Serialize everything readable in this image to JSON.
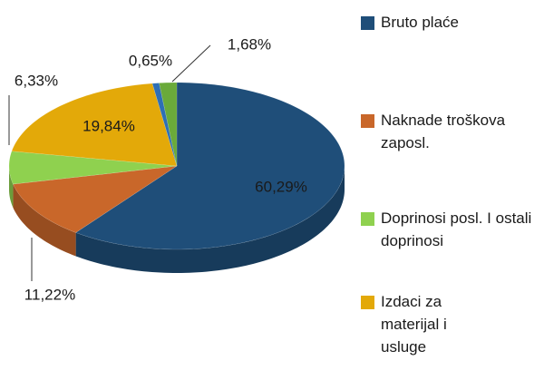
{
  "chart_data": {
    "type": "pie",
    "categories": [
      "Bruto plaće",
      "Naknade troškova zaposl.",
      "Doprinosi posl. I ostali doprinosi",
      "Izdaci za materijal i usluge",
      null,
      null
    ],
    "values": [
      60.29,
      11.22,
      6.33,
      19.84,
      0.65,
      1.68
    ],
    "value_labels": [
      "60,29%",
      "11,22%",
      "6,33%",
      "19,84%",
      "0,65%",
      "1,68%"
    ],
    "colors": [
      "#1f4e79",
      "#c9672a",
      "#8fd14f",
      "#e3a909",
      "#2e6fb5",
      "#6aaa3a"
    ],
    "legend": "right"
  }
}
